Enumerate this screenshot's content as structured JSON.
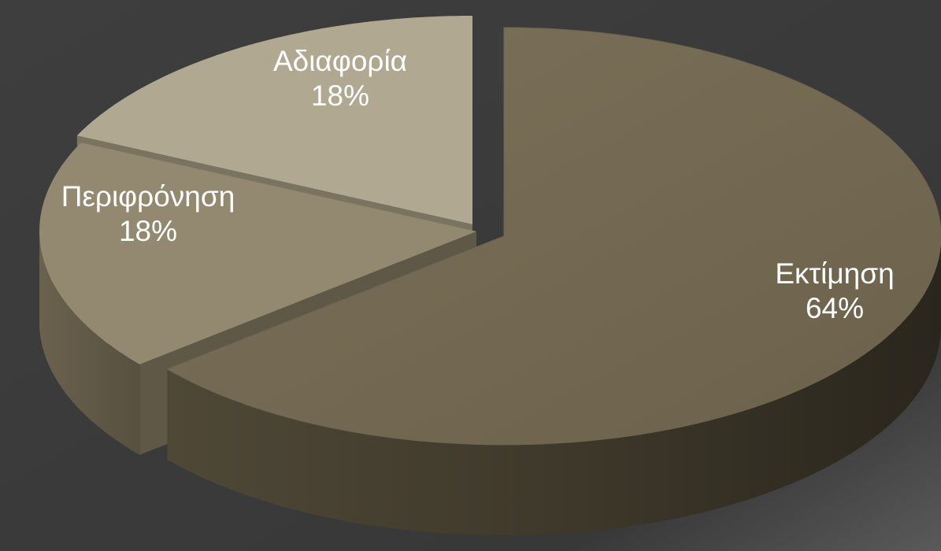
{
  "chart_data": {
    "type": "pie",
    "style": "3d-exploded",
    "slices": [
      {
        "name": "Εκτίμηση",
        "value": 64,
        "label": "64%",
        "color": "#756b55"
      },
      {
        "name": "Περιφρόνηση",
        "value": 18,
        "label": "18%",
        "color": "#938970"
      },
      {
        "name": "Αδιαφορία",
        "value": 18,
        "label": "18%",
        "color": "#b0a890"
      }
    ],
    "legend": "none"
  },
  "colors": {
    "background": "#3b3b3b",
    "label_text": "#ffffff"
  }
}
